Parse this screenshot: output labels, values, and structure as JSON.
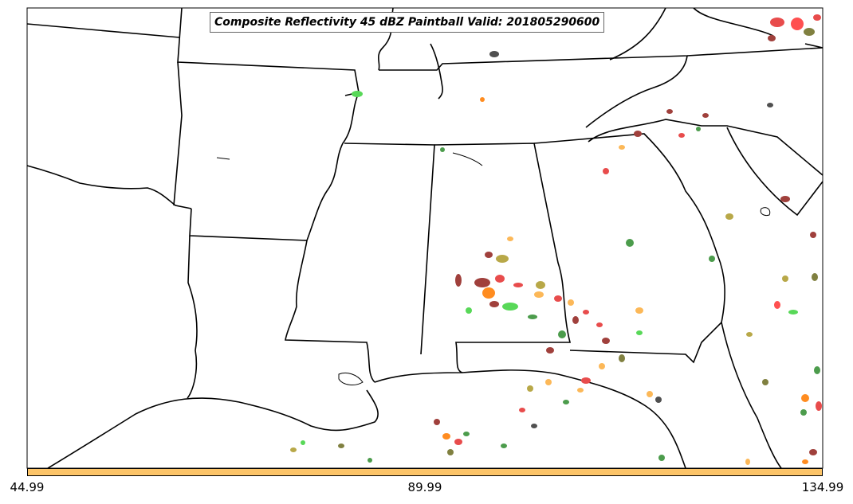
{
  "map": {
    "title": "Composite Reflectivity 45 dBZ Paintball Valid: 201805290600"
  },
  "colorbar": {
    "color": "#fcc468",
    "ticks": [
      "44.99",
      "89.99",
      "134.99"
    ]
  },
  "palette": {
    "member_colors": [
      "#e84c4c",
      "#a0403c",
      "#4c9c4c",
      "#58d858",
      "#ff8c20",
      "#fcb858",
      "#b8a848",
      "#808040",
      "#505050"
    ]
  }
}
